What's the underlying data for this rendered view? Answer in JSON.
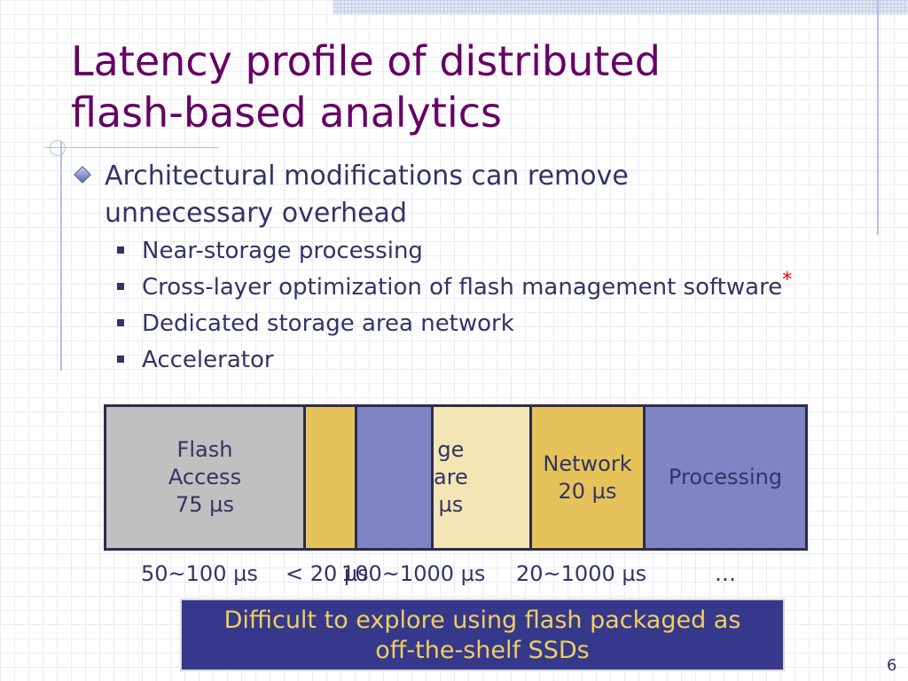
{
  "slide": {
    "title_line1": "Latency profile of distributed",
    "title_line2": "flash-based analytics",
    "bullet": "Architectural modifications can remove unnecessary overhead",
    "sub_items": [
      "Near-storage processing",
      "Cross-layer optimization of flash management software",
      "Dedicated storage area network",
      "Accelerator"
    ],
    "footnote_marker": "*",
    "page_number": "6"
  },
  "diagram": {
    "segments": [
      {
        "lines": [
          "Flash",
          "Access",
          "75 µs"
        ],
        "color": "#c0c0c0"
      },
      {
        "lines": [],
        "color": "#e6c35a"
      },
      {
        "lines": [],
        "color": "#7f84c5"
      },
      {
        "lines": [
          "ge",
          "are",
          "µs"
        ],
        "color": "#f2e6b4"
      },
      {
        "lines": [
          "Network",
          "20 µs"
        ],
        "color": "#e6c35a"
      },
      {
        "lines": [
          "Processing"
        ],
        "color": "#7f84c5"
      }
    ],
    "latencies": [
      "50~100 µs",
      "< 20 µs",
      "100~1000 µs",
      "20~1000 µs",
      "…"
    ]
  },
  "callout": {
    "line1": "Difficult to explore using flash packaged as",
    "line2": "off-the-shelf SSDs"
  }
}
